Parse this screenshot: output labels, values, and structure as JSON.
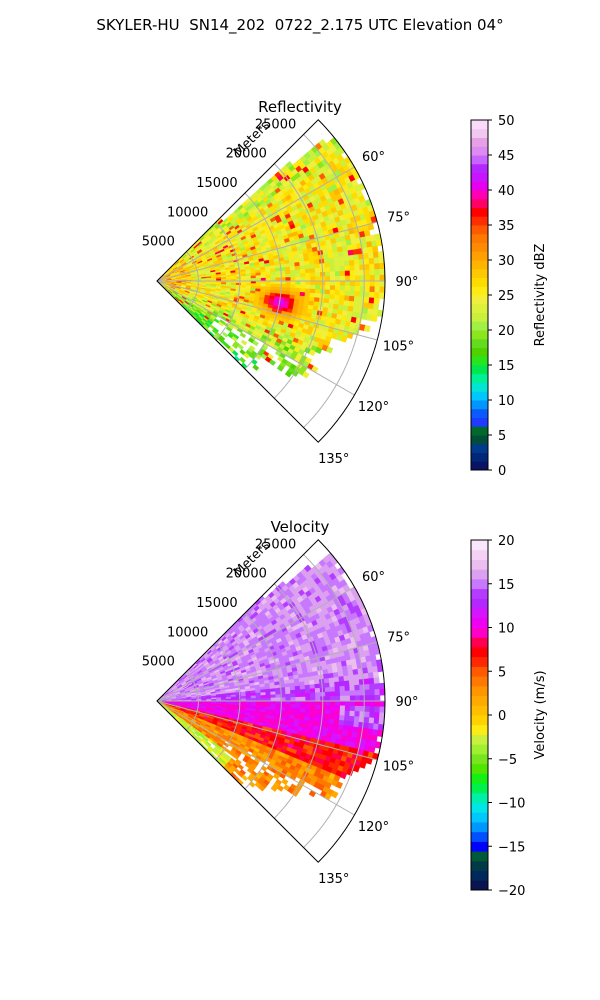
{
  "suptitle": "SKYLER-HU  SN14_202  0722_2.175 UTC Elevation 04°",
  "chart_data": [
    {
      "type": "heatmap",
      "subtype": "polar-sector",
      "title": "Reflectivity",
      "radial_label": "Meters",
      "radial_ticks": [
        5000,
        10000,
        15000,
        20000,
        25000
      ],
      "radial_tick_labels": [
        "5000",
        "10000",
        "15000",
        "20000",
        "25000"
      ],
      "rlim": [
        0,
        27500
      ],
      "theta_range_deg": [
        45,
        135
      ],
      "theta_ticks": [
        60,
        75,
        90,
        105,
        120,
        135
      ],
      "theta_tick_labels": [
        "60°",
        "75°",
        "90°",
        "105°",
        "120°",
        "135°"
      ],
      "grid": true,
      "colorbar": {
        "label": "Reflectivity dBZ",
        "range": [
          0,
          50
        ],
        "ticks": [
          0,
          5,
          10,
          15,
          20,
          25,
          30,
          35,
          40,
          45,
          50
        ],
        "tick_labels": [
          "0",
          "5",
          "10",
          "15",
          "20",
          "25",
          "30",
          "35",
          "40",
          "45",
          "50"
        ]
      },
      "field_description": "Mostly 20–30 dBZ (yellow/green), lower 15–22 dBZ near edges, scattered 33–38 dBZ cells, a 40–45 dBZ core near 100°, 12 km"
    },
    {
      "type": "heatmap",
      "subtype": "polar-sector",
      "title": "Velocity",
      "radial_label": "Meters",
      "radial_ticks": [
        5000,
        10000,
        15000,
        20000,
        25000
      ],
      "radial_tick_labels": [
        "5000",
        "10000",
        "15000",
        "20000",
        "25000"
      ],
      "rlim": [
        0,
        27500
      ],
      "theta_range_deg": [
        45,
        135
      ],
      "theta_ticks": [
        60,
        75,
        90,
        105,
        120,
        135
      ],
      "theta_tick_labels": [
        "60°",
        "75°",
        "90°",
        "105°",
        "120°",
        "135°"
      ],
      "grid": true,
      "colorbar": {
        "label": "Velocity (m/s)",
        "range": [
          -20,
          20
        ],
        "ticks": [
          -20,
          -15,
          -10,
          -5,
          0,
          5,
          10,
          15,
          20
        ],
        "tick_labels": [
          "−20",
          "−15",
          "−10",
          "−5",
          "0",
          "5",
          "10",
          "15",
          "20"
        ]
      },
      "field_description": "Azimuths 45–85° about 14–17 m/s (purple/magenta), 85–105° about 8–12 m/s (red), 105–130° about 0–6 m/s (yellow/orange), a −4 m/s strip near 130° close range"
    }
  ],
  "colors": {
    "reflectivity_scale": [
      "#0a1464",
      "#00287a",
      "#003a8c",
      "#004d3a",
      "#006a2c",
      "#1e3cff",
      "#0a5aff",
      "#0096ff",
      "#00c8ff",
      "#00e6d2",
      "#00f096",
      "#00e650",
      "#28e61e",
      "#50d200",
      "#64dc1e",
      "#8ce61e",
      "#a0f046",
      "#c8f03c",
      "#dcf03c",
      "#f0f03c",
      "#ffeb14",
      "#ffdc00",
      "#ffc800",
      "#ffb400",
      "#ffa000",
      "#ff8c00",
      "#ff7800",
      "#ff5a00",
      "#ff2d00",
      "#ff0000",
      "#ff0064",
      "#ff00b4",
      "#e600f0",
      "#c814ff",
      "#b428ff",
      "#c864ff",
      "#dc8cf0",
      "#e6a0e6",
      "#f0c8f0",
      "#fadcfa"
    ],
    "velocity_scale": [
      "#0a1450",
      "#00285a",
      "#003a46",
      "#005a3a",
      "#0000ff",
      "#0050ff",
      "#0096ff",
      "#00c8ff",
      "#00e6e6",
      "#00f0aa",
      "#00f050",
      "#14f014",
      "#50e600",
      "#78e61e",
      "#a0f032",
      "#c8f03c",
      "#ffeb14",
      "#ffd200",
      "#ffbe00",
      "#ffaa00",
      "#ff9600",
      "#ff7800",
      "#ff5a00",
      "#ff2800",
      "#ff0000",
      "#ff0050",
      "#ff00c8",
      "#f000f0",
      "#d714ff",
      "#b428ff",
      "#b43cff",
      "#c878ff",
      "#dca0f0",
      "#ebbef0",
      "#f5d2f5",
      "#fae6fa"
    ]
  }
}
